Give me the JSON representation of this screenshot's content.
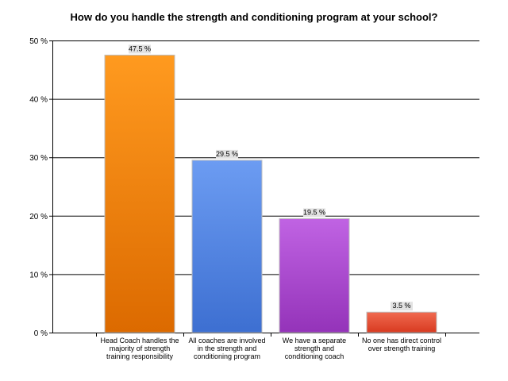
{
  "chart_data": {
    "type": "bar",
    "title": "How do you handle the strength and conditioning program at your school?",
    "xlabel": "",
    "ylabel": "",
    "ylim": [
      0,
      50
    ],
    "yticks": [
      0,
      10,
      20,
      30,
      40,
      50
    ],
    "ytick_labels": [
      "0 %",
      "10 %",
      "20 %",
      "30 %",
      "40 %",
      "50 %"
    ],
    "categories": [
      [
        "Head Coach handles the",
        "majority of strength",
        "training responsibility"
      ],
      [
        "All coaches are involved",
        "in the strength and",
        "conditioning program"
      ],
      [
        "We have a separate",
        "strength and",
        "conditioning coach"
      ],
      [
        "No one has direct control",
        "over strength training"
      ]
    ],
    "values": [
      47.5,
      29.5,
      19.5,
      3.5
    ],
    "data_labels": [
      "47.5 %",
      "29.5 %",
      "19.5 %",
      "3.5 %"
    ],
    "colors": [
      "#f07f09",
      "#5b8de8",
      "#b04fd6",
      "#e8503a"
    ],
    "grid": true,
    "legend": "none"
  }
}
